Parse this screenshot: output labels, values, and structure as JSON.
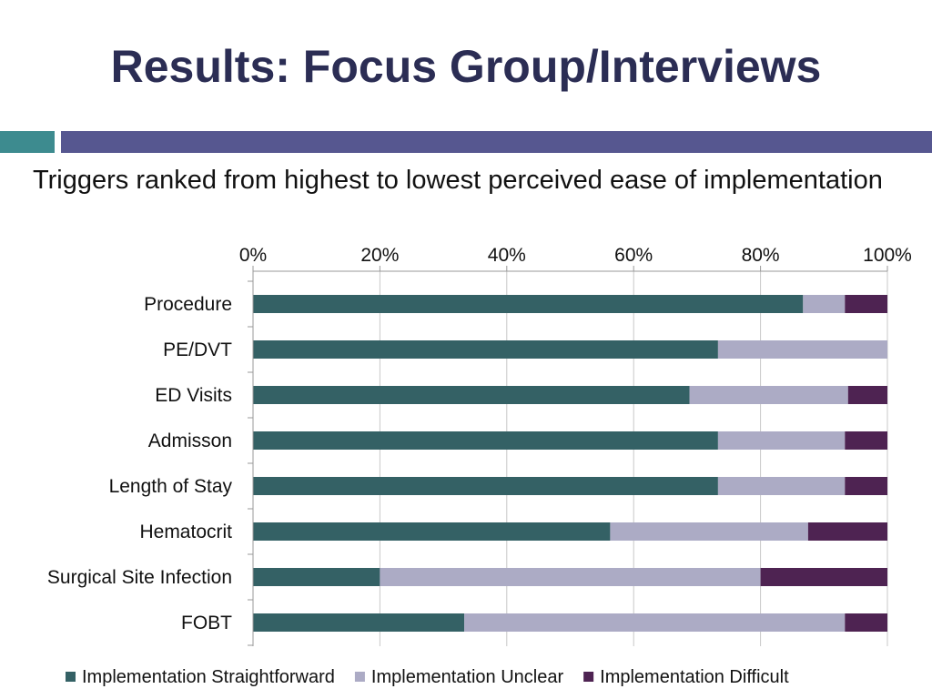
{
  "slide": {
    "title": "Results: Focus Group/Interviews",
    "subtitle": "Triggers ranked from highest to lowest perceived ease of implementation"
  },
  "colors": {
    "title": "#2b2d54",
    "accent_teal": "#3d8b8f",
    "accent_purple": "#565790"
  },
  "chart_data": {
    "type": "bar",
    "orientation": "horizontal",
    "stacked": true,
    "percent_stacked": true,
    "title": "",
    "xlabel": "",
    "ylabel": "",
    "x_axis_position": "top",
    "xlim": [
      0,
      100
    ],
    "x_ticks": [
      "0%",
      "20%",
      "40%",
      "60%",
      "80%",
      "100%"
    ],
    "grid": true,
    "legend_position": "bottom",
    "categories": [
      "Procedure",
      "PE/DVT",
      "ED Visits",
      "Admisson",
      "Length of Stay",
      "Hematocrit",
      "Surgical Site Infection",
      "FOBT"
    ],
    "series": [
      {
        "name": "Implementation Straightforward",
        "color": "#346165",
        "values": [
          86.7,
          73.3,
          68.8,
          73.3,
          73.3,
          56.3,
          20.0,
          33.3
        ]
      },
      {
        "name": "Implementation Unclear",
        "color": "#acabc5",
        "values": [
          6.6,
          26.7,
          25.0,
          20.0,
          20.0,
          31.2,
          60.0,
          60.0
        ]
      },
      {
        "name": "Implementation Difficult",
        "color": "#4e2352",
        "values": [
          6.7,
          0.0,
          6.2,
          6.7,
          6.7,
          12.5,
          20.0,
          6.7
        ]
      }
    ]
  }
}
